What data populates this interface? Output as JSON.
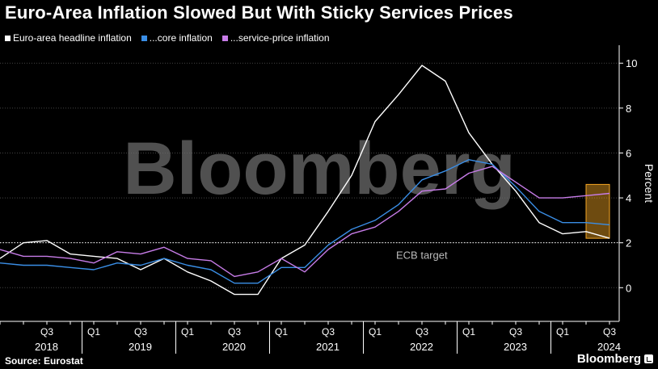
{
  "chart_data": {
    "type": "line",
    "title": "Euro-Area Inflation Slowed But With Sticky Services Prices",
    "ylabel": "Percent",
    "xlabel": "",
    "ylim": [
      -1.5,
      10.8
    ],
    "yticks": [
      0,
      2,
      4,
      6,
      8,
      10
    ],
    "grid": true,
    "watermark": "Bloomberg",
    "x": [
      "2018-Q1",
      "2018-Q2",
      "2018-Q3",
      "2018-Q4",
      "2019-Q1",
      "2019-Q2",
      "2019-Q3",
      "2019-Q4",
      "2020-Q1",
      "2020-Q2",
      "2020-Q3",
      "2020-Q4",
      "2021-Q1",
      "2021-Q2",
      "2021-Q3",
      "2021-Q4",
      "2022-Q1",
      "2022-Q2",
      "2022-Q3",
      "2022-Q4",
      "2023-Q1",
      "2023-Q2",
      "2023-Q3",
      "2023-Q4",
      "2024-Q1",
      "2024-Q2",
      "2024-Q3"
    ],
    "series": [
      {
        "name": "Euro-area headline inflation",
        "color": "#ffffff",
        "values": [
          1.3,
          2.0,
          2.1,
          1.5,
          1.4,
          1.3,
          0.8,
          1.3,
          0.7,
          0.3,
          -0.3,
          -0.3,
          1.3,
          1.9,
          3.4,
          5.0,
          7.4,
          8.6,
          9.9,
          9.2,
          6.9,
          5.5,
          4.3,
          2.9,
          2.4,
          2.5,
          2.2
        ]
      },
      {
        "name": "...core inflation",
        "color": "#3a8ee6",
        "values": [
          1.1,
          1.0,
          1.0,
          0.9,
          0.8,
          1.1,
          1.0,
          1.3,
          1.0,
          0.8,
          0.2,
          0.2,
          0.9,
          0.9,
          1.9,
          2.6,
          3.0,
          3.7,
          4.8,
          5.2,
          5.7,
          5.5,
          4.5,
          3.4,
          2.9,
          2.9,
          2.8
        ]
      },
      {
        "name": "...service-price inflation",
        "color": "#c77ce8",
        "values": [
          1.7,
          1.4,
          1.4,
          1.3,
          1.1,
          1.6,
          1.5,
          1.8,
          1.3,
          1.2,
          0.5,
          0.7,
          1.3,
          0.7,
          1.7,
          2.4,
          2.7,
          3.4,
          4.3,
          4.4,
          5.1,
          5.4,
          4.7,
          4.0,
          4.0,
          4.1,
          4.2
        ]
      }
    ],
    "reference_line": {
      "value": 2,
      "label": "ECB target"
    },
    "highlight": {
      "from": "2024-Q2",
      "to": "2024-Q3",
      "ymin": 2.2,
      "ymax": 4.6,
      "color": "#f5a623"
    },
    "x_tick_labels": [
      {
        "at": "2018-Q3",
        "label": "Q3"
      },
      {
        "at": "2019-Q1",
        "label": "Q1"
      },
      {
        "at": "2019-Q3",
        "label": "Q3"
      },
      {
        "at": "2020-Q1",
        "label": "Q1"
      },
      {
        "at": "2020-Q3",
        "label": "Q3"
      },
      {
        "at": "2021-Q1",
        "label": "Q1"
      },
      {
        "at": "2021-Q3",
        "label": "Q3"
      },
      {
        "at": "2022-Q1",
        "label": "Q1"
      },
      {
        "at": "2022-Q3",
        "label": "Q3"
      },
      {
        "at": "2023-Q1",
        "label": "Q1"
      },
      {
        "at": "2023-Q3",
        "label": "Q3"
      },
      {
        "at": "2024-Q1",
        "label": "Q1"
      },
      {
        "at": "2024-Q3",
        "label": "Q3"
      }
    ],
    "year_labels": [
      {
        "year": "2018",
        "center": "2018-Q3"
      },
      {
        "year": "2019",
        "center": "2019-Q3"
      },
      {
        "year": "2020",
        "center": "2020-Q3"
      },
      {
        "year": "2021",
        "center": "2021-Q3"
      },
      {
        "year": "2022",
        "center": "2022-Q3"
      },
      {
        "year": "2023",
        "center": "2023-Q3"
      },
      {
        "year": "2024",
        "center": "2024-Q3"
      }
    ]
  },
  "footer": {
    "source": "Source: Eurostat",
    "brand": "Bloomberg"
  }
}
